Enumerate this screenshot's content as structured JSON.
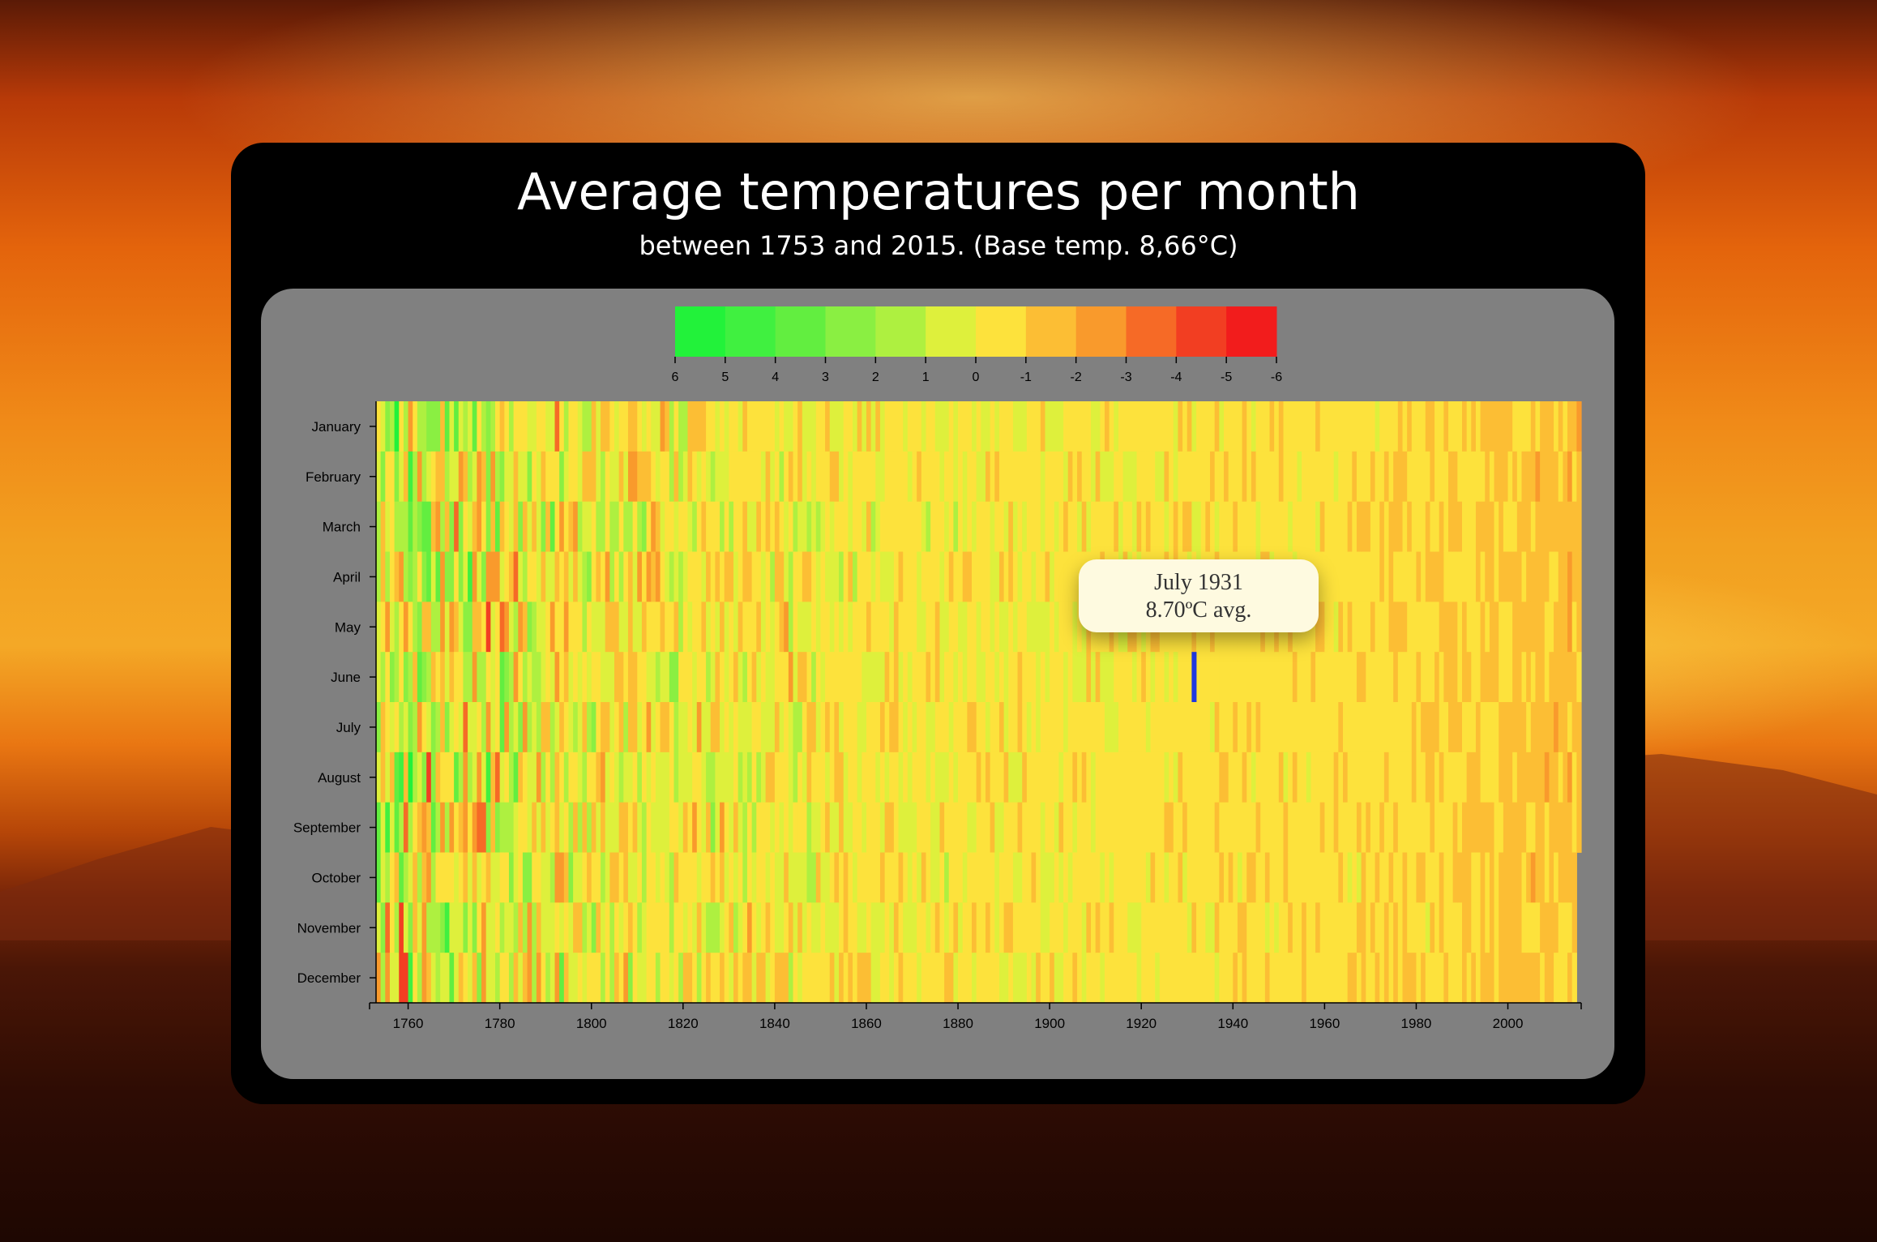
{
  "title": "Average temperatures per month",
  "subtitle": "between 1753 and 2015. (Base temp. 8,66°C)",
  "tooltip": {
    "line1": "July 1931",
    "line2": "8.70ºC avg."
  },
  "chart_data": {
    "type": "heatmap",
    "title": "Average temperatures per month",
    "subtitle": "between 1753 and 2015. (Base temp. 8,66°C)",
    "base_temp": 8.66,
    "x_range": [
      1753,
      2015
    ],
    "x_ticks": [
      1760,
      1780,
      1800,
      1820,
      1840,
      1860,
      1880,
      1900,
      1920,
      1940,
      1960,
      1980,
      2000
    ],
    "months": [
      "January",
      "February",
      "March",
      "April",
      "May",
      "June",
      "July",
      "August",
      "September",
      "October",
      "November",
      "December"
    ],
    "legend": {
      "ticks": [
        "6",
        "5",
        "4",
        "3",
        "2",
        "1",
        "0",
        "-1",
        "-2",
        "-3",
        "-4",
        "-5",
        "-6"
      ],
      "colors": [
        "#22f23a",
        "#40f040",
        "#62ee40",
        "#8aef42",
        "#aef040",
        "#def03c",
        "#fde23c",
        "#fcbe34",
        "#f99a2c",
        "#f66a26",
        "#f23e22",
        "#f21c1c"
      ]
    },
    "highlight": {
      "year": 1931,
      "month": "July",
      "value": 8.7
    },
    "dense_data_note": "",
    "era_profile": [
      {
        "year": 1753,
        "mean_variance": 0.3,
        "spread": 2.8
      },
      {
        "year": 1760,
        "mean_variance": 0.4,
        "spread": 3.0
      },
      {
        "year": 1780,
        "mean_variance": 0.0,
        "spread": 2.6
      },
      {
        "year": 1800,
        "mean_variance": -0.3,
        "spread": 1.8
      },
      {
        "year": 1820,
        "mean_variance": -0.1,
        "spread": 1.6
      },
      {
        "year": 1840,
        "mean_variance": -0.2,
        "spread": 1.3
      },
      {
        "year": 1860,
        "mean_variance": -0.3,
        "spread": 1.0
      },
      {
        "year": 1880,
        "mean_variance": -0.35,
        "spread": 0.9
      },
      {
        "year": 1900,
        "mean_variance": -0.35,
        "spread": 0.8
      },
      {
        "year": 1920,
        "mean_variance": -0.35,
        "spread": 0.7
      },
      {
        "year": 1940,
        "mean_variance": -0.6,
        "spread": 0.7
      },
      {
        "year": 1960,
        "mean_variance": -0.6,
        "spread": 0.6
      },
      {
        "year": 1980,
        "mean_variance": -0.8,
        "spread": 0.6
      },
      {
        "year": 2000,
        "mean_variance": -1.2,
        "spread": 0.6
      },
      {
        "year": 2015,
        "mean_variance": -1.4,
        "spread": 0.6
      }
    ]
  }
}
